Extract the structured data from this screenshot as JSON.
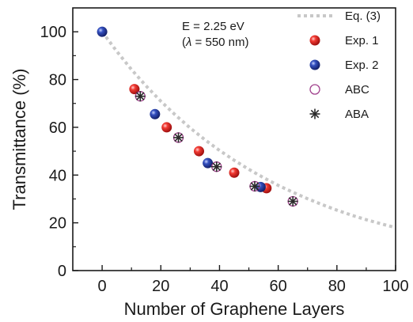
{
  "chart_data": {
    "type": "scatter",
    "xlabel": "Number of Graphene Layers",
    "ylabel": "Transmittance (%)",
    "xlim": [
      -10,
      100
    ],
    "ylim": [
      0,
      110
    ],
    "xticks": [
      0,
      20,
      40,
      60,
      80,
      100
    ],
    "yticks": [
      0,
      20,
      40,
      60,
      80,
      100
    ],
    "annotation": {
      "line1": "E = 2.25 eV",
      "line2_prefix": "(",
      "line2_symbol": "λ",
      "line2_suffix": " = 550 nm)"
    },
    "legend_position": "top-right",
    "series": [
      {
        "name": "Eq. (3)",
        "kind": "dotted-line",
        "color": "#c8c8c8",
        "x": [
          0,
          5,
          10,
          15,
          20,
          25,
          30,
          35,
          40,
          45,
          50,
          55,
          60,
          65,
          70,
          75,
          80,
          85,
          90,
          95,
          100
        ],
        "y": [
          100,
          91.8,
          84.2,
          77.3,
          70.9,
          65.1,
          59.7,
          54.8,
          50.3,
          46.2,
          42.4,
          38.9,
          35.7,
          32.8,
          30.1,
          27.6,
          25.3,
          23.2,
          21.3,
          19.6,
          18.0
        ]
      },
      {
        "name": "Exp. 1",
        "kind": "sphere",
        "color": "#e8211f",
        "x": [
          11,
          22,
          33,
          45,
          56
        ],
        "y": [
          76,
          60,
          50,
          41,
          34.5
        ]
      },
      {
        "name": "Exp. 2",
        "kind": "sphere",
        "color": "#2a45a8",
        "x": [
          0,
          18,
          36,
          54
        ],
        "y": [
          100,
          65.5,
          45,
          35
        ]
      },
      {
        "name": "ABC",
        "kind": "open-circle",
        "color": "#a0408c",
        "x": [
          13,
          26,
          39,
          52,
          65
        ],
        "y": [
          73,
          55.7,
          43.5,
          35.3,
          29
        ]
      },
      {
        "name": "ABA",
        "kind": "asterisk",
        "color": "#2a2a2a",
        "x": [
          13,
          26,
          39,
          52,
          65
        ],
        "y": [
          73,
          55.7,
          43.5,
          35.3,
          29
        ]
      }
    ]
  }
}
